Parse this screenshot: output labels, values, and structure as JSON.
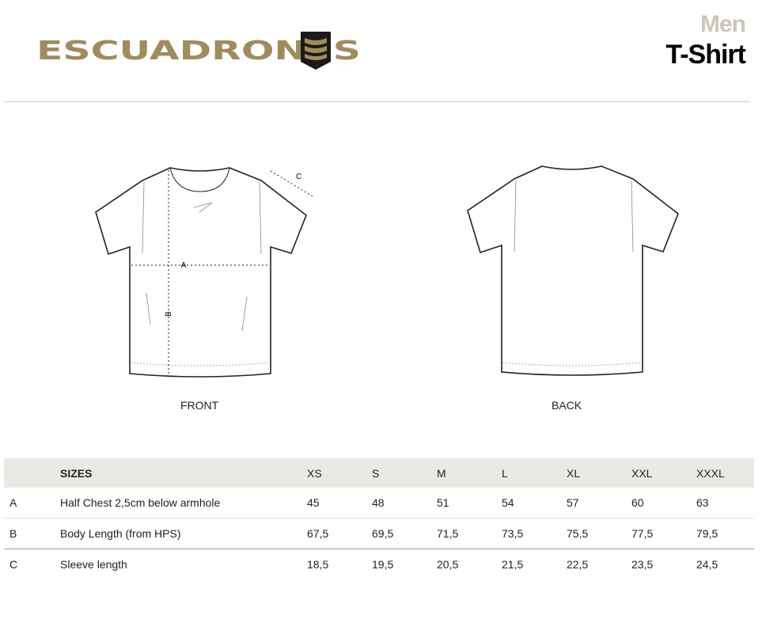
{
  "header": {
    "brand": "ESCUADRONES",
    "category": "Men",
    "title": "T-Shirt",
    "brand_color": "#a08b5f"
  },
  "views": {
    "front": "FRONT",
    "back": "BACK",
    "markers": {
      "a": "A",
      "b": "B",
      "c": "C"
    }
  },
  "table": {
    "header": {
      "label": "SIZES",
      "sizes": [
        "XS",
        "S",
        "M",
        "L",
        "XL",
        "XXL",
        "XXXL"
      ]
    },
    "rows": [
      {
        "code": "A",
        "label": "Half Chest 2,5cm below armhole",
        "values": [
          "45",
          "48",
          "51",
          "54",
          "57",
          "60",
          "63"
        ]
      },
      {
        "code": "B",
        "label": "Body Length (from HPS)",
        "values": [
          "67,5",
          "69,5",
          "71,5",
          "73,5",
          "75,5",
          "77,5",
          "79,5"
        ]
      },
      {
        "code": "C",
        "label": "Sleeve length",
        "values": [
          "18,5",
          "19,5",
          "20,5",
          "21,5",
          "22,5",
          "23,5",
          "24,5"
        ]
      }
    ]
  }
}
